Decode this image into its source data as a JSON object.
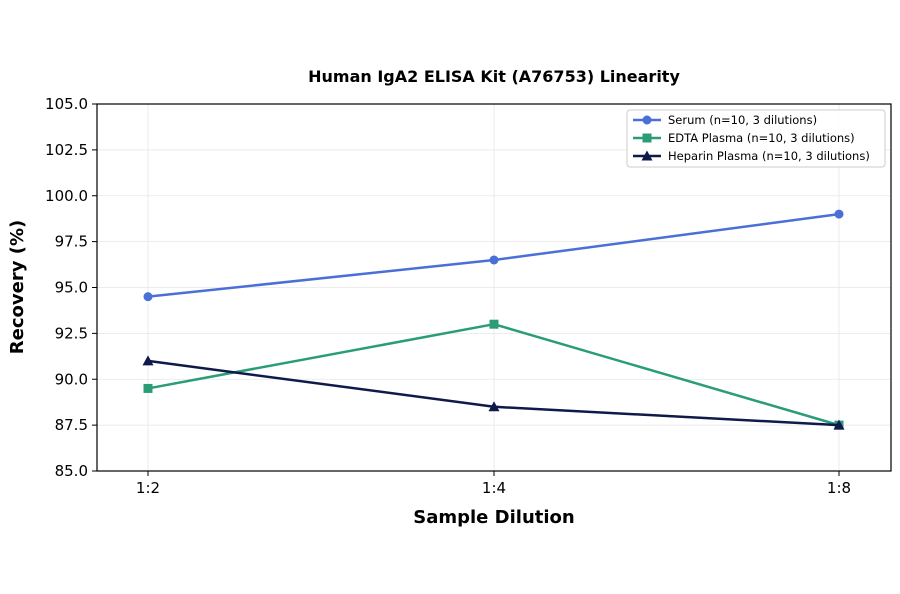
{
  "chart_data": {
    "type": "line",
    "title": "Human IgA2 ELISA Kit (A76753) Linearity",
    "xlabel": "Sample Dilution",
    "ylabel": "Recovery (%)",
    "categories": [
      "1:2",
      "1:4",
      "1:8"
    ],
    "ylim": [
      85.0,
      105.0
    ],
    "yticks": [
      "85.0",
      "87.5",
      "90.0",
      "92.5",
      "95.0",
      "97.5",
      "100.0",
      "102.5",
      "105.0"
    ],
    "grid": true,
    "legend_position": "top-right",
    "series": [
      {
        "name": "Serum (n=10, 3 dilutions)",
        "values": [
          94.5,
          96.5,
          99.0
        ],
        "color": "#4a6fd6",
        "marker": "circle"
      },
      {
        "name": "EDTA Plasma (n=10, 3 dilutions)",
        "values": [
          89.5,
          93.0,
          87.5
        ],
        "color": "#2a9d78",
        "marker": "square"
      },
      {
        "name": "Heparin Plasma (n=10, 3 dilutions)",
        "values": [
          91.0,
          88.5,
          87.5
        ],
        "color": "#0f1a4a",
        "marker": "triangle"
      }
    ]
  }
}
